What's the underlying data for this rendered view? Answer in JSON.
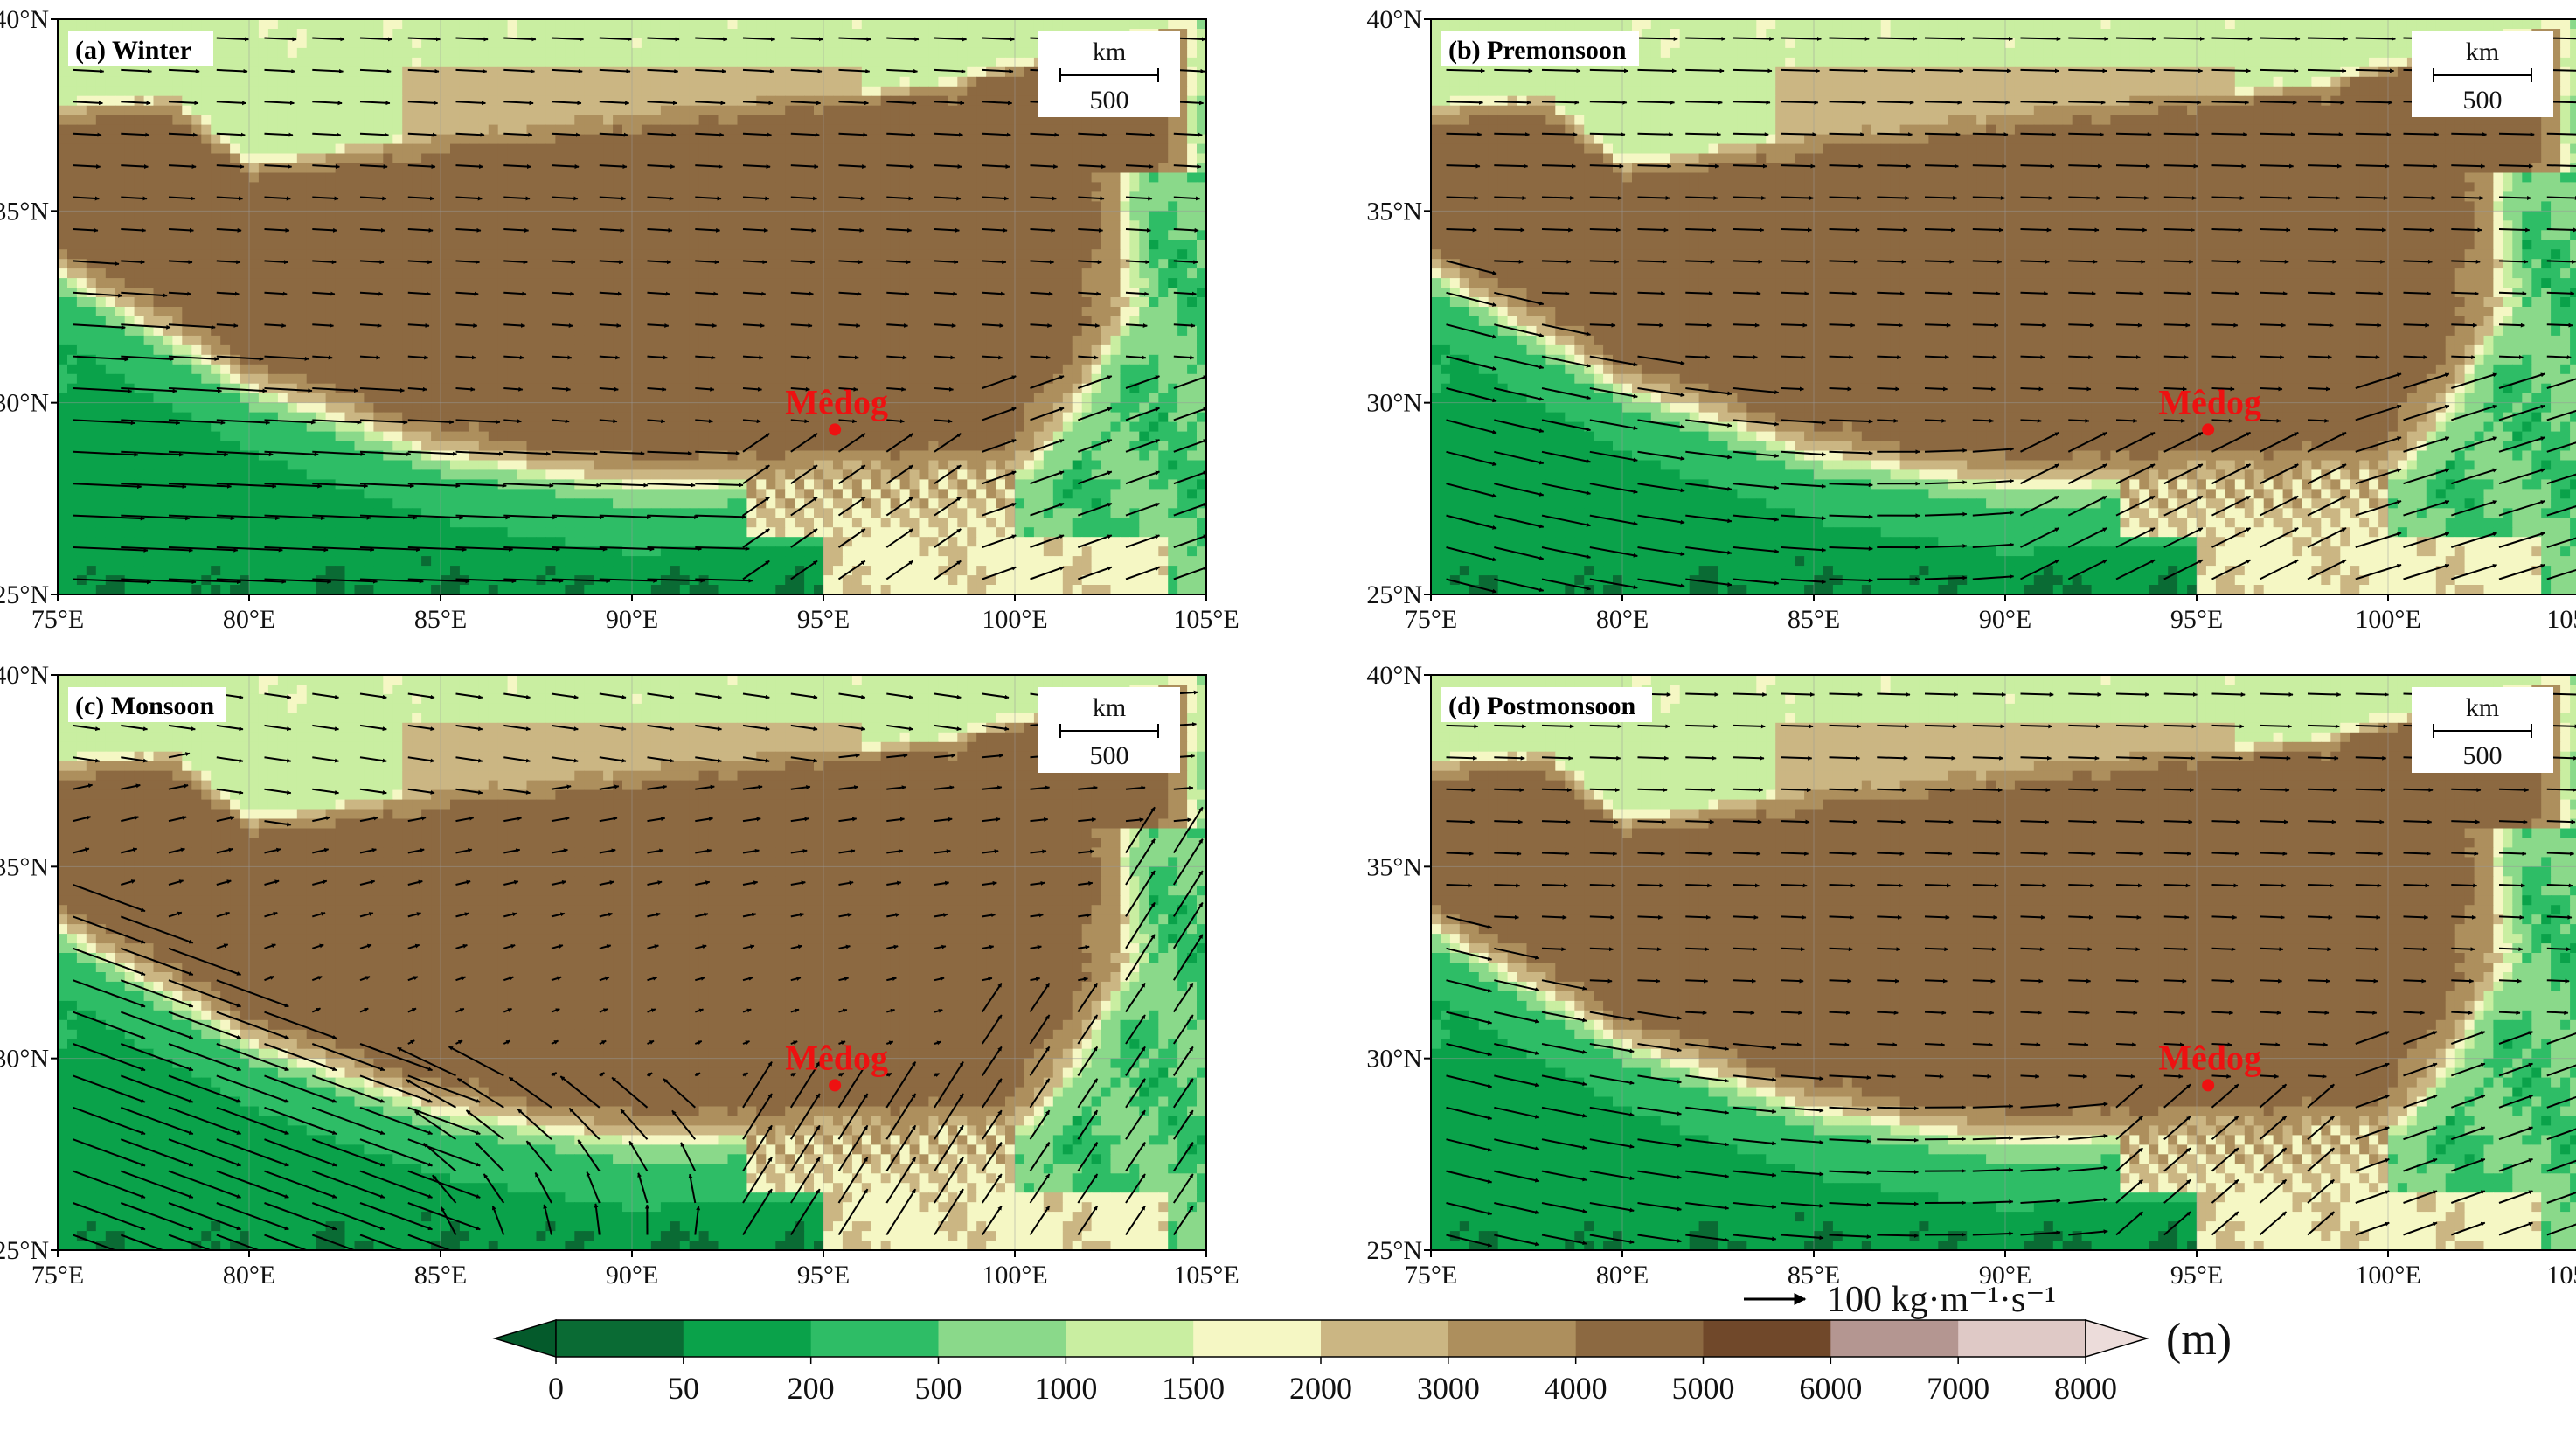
{
  "figure": {
    "station": {
      "name": "Mêdog",
      "lon": 95.3,
      "lat": 29.3,
      "color": "#ee1111"
    },
    "lon_ticks": [
      {
        "value": 75,
        "label": "75°E"
      },
      {
        "value": 80,
        "label": "80°E"
      },
      {
        "value": 85,
        "label": "85°E"
      },
      {
        "value": 90,
        "label": "90°E"
      },
      {
        "value": 95,
        "label": "95°E"
      },
      {
        "value": 100,
        "label": "100°E"
      },
      {
        "value": 105,
        "label": "105°E"
      }
    ],
    "lat_ticks": [
      {
        "value": 25,
        "label": "25°N"
      },
      {
        "value": 30,
        "label": "30°N"
      },
      {
        "value": 35,
        "label": "35°N"
      },
      {
        "value": 40,
        "label": "40°N"
      }
    ],
    "extent": {
      "lon": [
        75,
        105
      ],
      "lat": [
        25,
        40
      ]
    },
    "panels": [
      {
        "id": "a",
        "label": "(a) Winter",
        "season": "winter"
      },
      {
        "id": "b",
        "label": "(b) Premonsoon",
        "season": "premonsoon"
      },
      {
        "id": "c",
        "label": "(c) Monsoon",
        "season": "monsoon"
      },
      {
        "id": "d",
        "label": "(d) Postmonsoon",
        "season": "postmonsoon"
      }
    ],
    "scale_bar": {
      "unit": "km",
      "length_label": "500"
    },
    "reference_vector": {
      "label": "100 kg·m⁻¹·s⁻¹"
    },
    "colorbar": {
      "unit_label": "(m)",
      "tick_labels": [
        "0",
        "50",
        "200",
        "500",
        "1000",
        "1500",
        "2000",
        "3000",
        "4000",
        "5000",
        "6000",
        "7000",
        "8000"
      ],
      "colors": [
        "#0a6b34",
        "#0aa24a",
        "#2ebd66",
        "#8ad98a",
        "#c9eea1",
        "#f5f7c4",
        "#cbb683",
        "#ad8f5d",
        "#8c6941",
        "#70482a",
        "#b49691",
        "#dfc9c6"
      ],
      "under_color": "#045a2b",
      "over_color": "#ecdcda"
    },
    "colors": {
      "arrow": "#000000",
      "frame": "#000000"
    }
  }
}
